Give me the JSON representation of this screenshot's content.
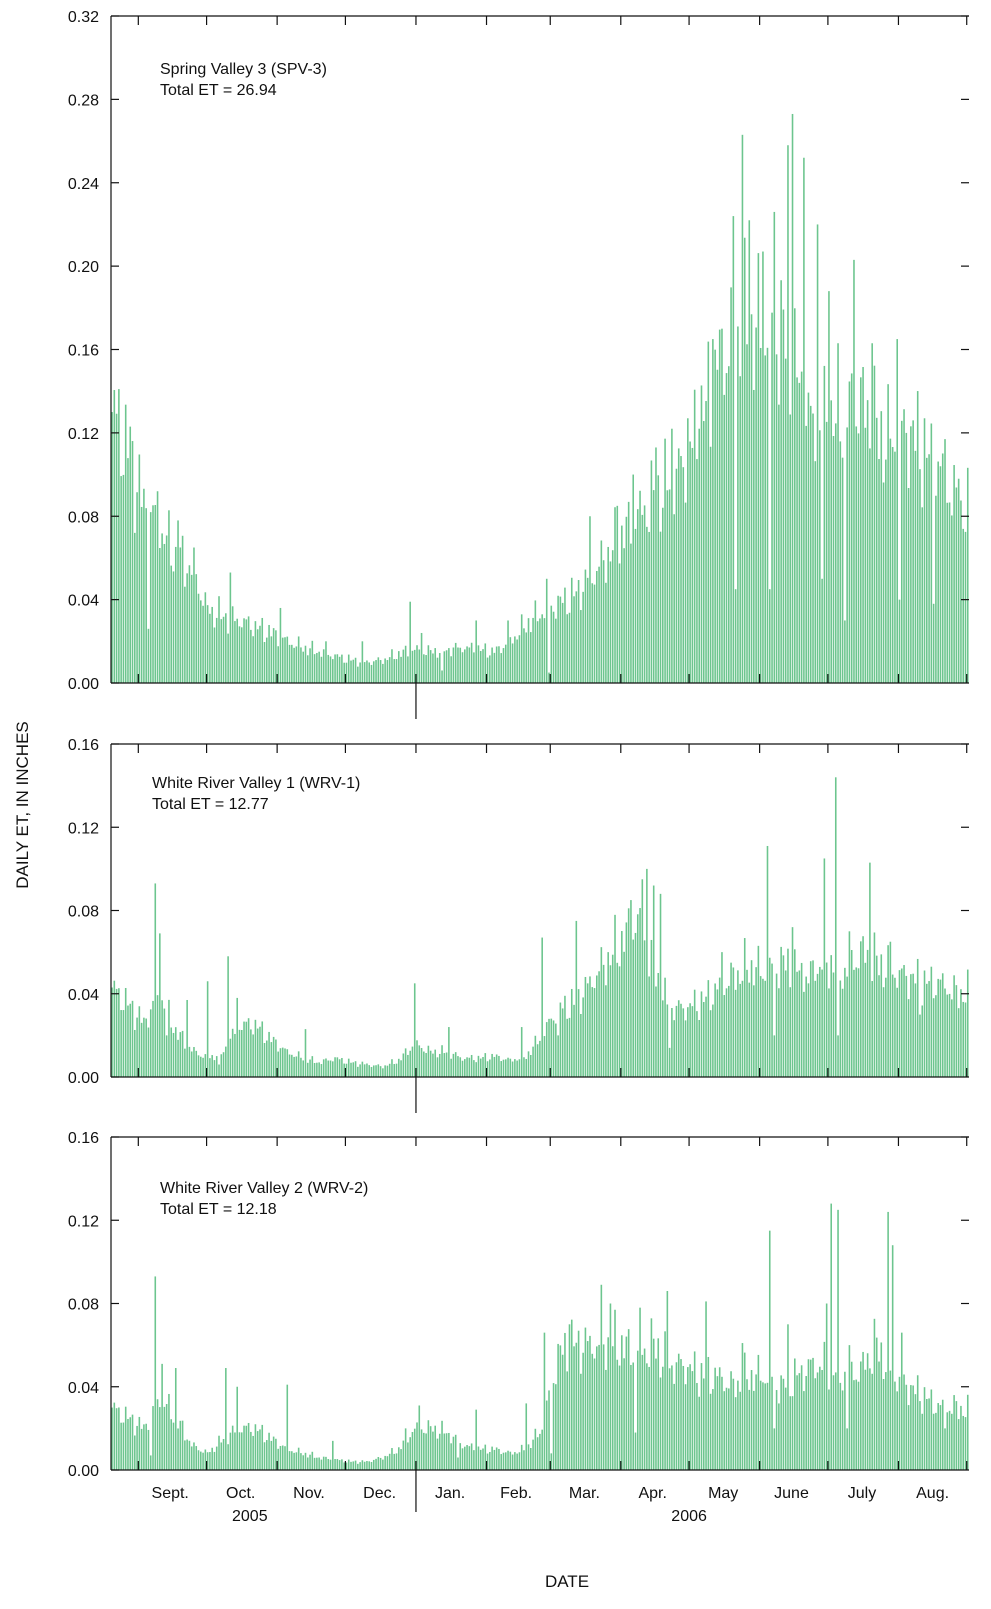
{
  "chart_data": [
    {
      "type": "bar",
      "title": "Spring Valley 3  (SPV-3)",
      "subtitle": "Total ET = 26.94",
      "ylim": [
        0,
        0.32
      ],
      "yticks": [
        "0.00",
        "0.04",
        "0.08",
        "0.12",
        "0.16",
        "0.20",
        "0.24",
        "0.28",
        "0.32"
      ],
      "color": "#6cc58e",
      "x_start": "2005-08-20",
      "x_end": "2006-08-31",
      "series": [
        {
          "x": [
            "2005-08-20",
            "2005-08-27",
            "2005-09-03",
            "2005-09-10",
            "2005-09-17",
            "2005-09-24",
            "2005-10-01",
            "2005-10-08",
            "2005-10-15",
            "2005-10-22",
            "2005-10-29",
            "2005-11-05",
            "2005-11-12",
            "2005-11-19",
            "2005-11-26",
            "2005-12-03",
            "2005-12-10",
            "2005-12-17",
            "2005-12-24",
            "2005-12-31",
            "2006-01-07",
            "2006-01-14",
            "2006-01-21",
            "2006-01-28",
            "2006-02-04",
            "2006-02-11",
            "2006-02-18",
            "2006-02-25",
            "2006-03-04",
            "2006-03-11",
            "2006-03-18",
            "2006-03-25",
            "2006-04-01",
            "2006-04-08",
            "2006-04-15",
            "2006-04-22",
            "2006-04-29",
            "2006-05-06",
            "2006-05-13",
            "2006-05-20",
            "2006-05-27",
            "2006-06-03",
            "2006-06-10",
            "2006-06-17",
            "2006-06-24",
            "2006-07-01",
            "2006-07-08",
            "2006-07-15",
            "2006-07-22",
            "2006-07-29",
            "2006-08-05",
            "2006-08-12",
            "2006-08-19",
            "2006-08-26",
            "2006-08-31"
          ],
          "values": [
            0.13,
            0.11,
            0.085,
            0.075,
            0.06,
            0.055,
            0.035,
            0.032,
            0.03,
            0.027,
            0.024,
            0.02,
            0.017,
            0.015,
            0.013,
            0.011,
            0.01,
            0.011,
            0.014,
            0.016,
            0.015,
            0.016,
            0.017,
            0.016,
            0.015,
            0.02,
            0.028,
            0.034,
            0.038,
            0.042,
            0.05,
            0.06,
            0.07,
            0.08,
            0.088,
            0.095,
            0.105,
            0.125,
            0.15,
            0.165,
            0.165,
            0.17,
            0.17,
            0.145,
            0.12,
            0.125,
            0.13,
            0.135,
            0.12,
            0.115,
            0.12,
            0.11,
            0.1,
            0.085,
            0.08
          ],
          "spikes": [
            [
              "2005-08-23",
              0.141
            ],
            [
              "2005-08-28",
              0.123
            ],
            [
              "2005-09-09",
              0.092
            ],
            [
              "2005-09-18",
              0.078
            ],
            [
              "2005-09-25",
              0.065
            ],
            [
              "2005-10-11",
              0.053
            ],
            [
              "2005-11-02",
              0.036
            ],
            [
              "2005-11-22",
              0.02
            ],
            [
              "2005-12-08",
              0.02
            ],
            [
              "2005-12-29",
              0.039
            ],
            [
              "2006-01-03",
              0.024
            ],
            [
              "2006-01-27",
              0.03
            ],
            [
              "2006-02-10",
              0.03
            ],
            [
              "2006-02-27",
              0.05
            ],
            [
              "2006-03-18",
              0.08
            ],
            [
              "2006-03-30",
              0.085
            ],
            [
              "2006-04-06",
              0.1
            ],
            [
              "2006-04-16",
              0.113
            ],
            [
              "2006-04-23",
              0.122
            ],
            [
              "2006-04-30",
              0.127
            ],
            [
              "2006-05-05",
              0.122
            ],
            [
              "2006-05-11",
              0.165
            ],
            [
              "2006-05-15",
              0.17
            ],
            [
              "2006-05-20",
              0.224
            ],
            [
              "2006-05-24",
              0.263
            ],
            [
              "2006-05-27",
              0.222
            ],
            [
              "2006-06-02",
              0.207
            ],
            [
              "2006-06-07",
              0.226
            ],
            [
              "2006-06-13",
              0.258
            ],
            [
              "2006-06-15",
              0.273
            ],
            [
              "2006-06-20",
              0.252
            ],
            [
              "2006-06-26",
              0.22
            ],
            [
              "2006-07-01",
              0.188
            ],
            [
              "2006-07-12",
              0.203
            ],
            [
              "2006-07-20",
              0.163
            ],
            [
              "2006-07-31",
              0.165
            ],
            [
              "2006-08-07",
              0.126
            ],
            [
              "2006-08-12",
              0.127
            ],
            [
              "2006-08-21",
              0.117
            ],
            [
              "2006-08-27",
              0.098
            ]
          ],
          "dips": [
            [
              "2005-09-05",
              0.026
            ],
            [
              "2006-01-12",
              0.006
            ],
            [
              "2006-02-28",
              0.005
            ],
            [
              "2006-05-21",
              0.045
            ],
            [
              "2006-06-05",
              0.045
            ],
            [
              "2006-06-28",
              0.05
            ],
            [
              "2006-07-08",
              0.03
            ],
            [
              "2006-08-01",
              0.04
            ],
            [
              "2006-08-16",
              0.038
            ]
          ]
        }
      ]
    },
    {
      "type": "bar",
      "title": "White River Valley 1  (WRV-1)",
      "subtitle": "Total ET = 12.77",
      "ylim": [
        0,
        0.16
      ],
      "yticks": [
        "0.00",
        "0.04",
        "0.08",
        "0.12",
        "0.16"
      ],
      "color": "#6cc58e",
      "x_start": "2005-08-20",
      "x_end": "2006-08-31",
      "series": [
        {
          "x": [
            "2005-08-20",
            "2005-08-27",
            "2005-09-03",
            "2005-09-10",
            "2005-09-17",
            "2005-09-24",
            "2005-10-01",
            "2005-10-08",
            "2005-10-15",
            "2005-10-22",
            "2005-10-29",
            "2005-11-05",
            "2005-11-12",
            "2005-11-19",
            "2005-11-26",
            "2005-12-03",
            "2005-12-10",
            "2005-12-17",
            "2005-12-24",
            "2005-12-31",
            "2006-01-07",
            "2006-01-14",
            "2006-01-21",
            "2006-01-28",
            "2006-02-04",
            "2006-02-11",
            "2006-02-18",
            "2006-02-25",
            "2006-03-04",
            "2006-03-11",
            "2006-03-18",
            "2006-03-25",
            "2006-04-01",
            "2006-04-08",
            "2006-04-15",
            "2006-04-22",
            "2006-04-29",
            "2006-05-06",
            "2006-05-13",
            "2006-05-20",
            "2006-05-27",
            "2006-06-03",
            "2006-06-10",
            "2006-06-17",
            "2006-06-24",
            "2006-07-01",
            "2006-07-08",
            "2006-07-15",
            "2006-07-22",
            "2006-07-29",
            "2006-08-05",
            "2006-08-12",
            "2006-08-19",
            "2006-08-26",
            "2006-08-31"
          ],
          "values": [
            0.043,
            0.035,
            0.026,
            0.04,
            0.022,
            0.013,
            0.009,
            0.012,
            0.025,
            0.025,
            0.018,
            0.012,
            0.009,
            0.007,
            0.009,
            0.007,
            0.006,
            0.005,
            0.008,
            0.016,
            0.012,
            0.012,
            0.009,
            0.009,
            0.01,
            0.008,
            0.01,
            0.02,
            0.033,
            0.035,
            0.045,
            0.055,
            0.065,
            0.075,
            0.05,
            0.033,
            0.033,
            0.036,
            0.042,
            0.048,
            0.053,
            0.05,
            0.055,
            0.05,
            0.052,
            0.055,
            0.05,
            0.06,
            0.055,
            0.05,
            0.048,
            0.045,
            0.045,
            0.04,
            0.04
          ],
          "spikes": [
            [
              "2005-09-08",
              0.093
            ],
            [
              "2005-09-10",
              0.069
            ],
            [
              "2005-09-22",
              0.037
            ],
            [
              "2005-10-01",
              0.046
            ],
            [
              "2005-10-10",
              0.058
            ],
            [
              "2005-10-14",
              0.038
            ],
            [
              "2005-11-13",
              0.023
            ],
            [
              "2005-12-31",
              0.045
            ],
            [
              "2006-01-15",
              0.024
            ],
            [
              "2006-02-16",
              0.024
            ],
            [
              "2006-02-25",
              0.067
            ],
            [
              "2006-03-04",
              0.04
            ],
            [
              "2006-03-12",
              0.075
            ],
            [
              "2006-03-26",
              0.06
            ],
            [
              "2006-04-05",
              0.085
            ],
            [
              "2006-04-10",
              0.095
            ],
            [
              "2006-04-12",
              0.1
            ],
            [
              "2006-04-15",
              0.092
            ],
            [
              "2006-04-18",
              0.088
            ],
            [
              "2006-05-15",
              0.06
            ],
            [
              "2006-06-04",
              0.111
            ],
            [
              "2006-06-15",
              0.072
            ],
            [
              "2006-06-29",
              0.105
            ],
            [
              "2006-07-04",
              0.144
            ],
            [
              "2006-07-10",
              0.07
            ],
            [
              "2006-07-19",
              0.103
            ],
            [
              "2006-07-28",
              0.065
            ]
          ],
          "dips": [
            [
              "2005-09-13",
              0.02
            ],
            [
              "2005-10-06",
              0.006
            ],
            [
              "2006-03-04",
              0.02
            ],
            [
              "2006-04-22",
              0.014
            ],
            [
              "2006-06-07",
              0.02
            ],
            [
              "2006-06-22",
              0.045
            ],
            [
              "2006-07-05",
              0.02
            ],
            [
              "2006-08-10",
              0.03
            ]
          ]
        }
      ]
    },
    {
      "type": "bar",
      "title": "White River Valley 2  (WRV-2)",
      "subtitle": "Total ET = 12.18",
      "ylim": [
        0,
        0.16
      ],
      "yticks": [
        "0.00",
        "0.04",
        "0.08",
        "0.12",
        "0.16"
      ],
      "color": "#6cc58e",
      "x_start": "2005-08-20",
      "x_end": "2006-08-31",
      "xlabel": "DATE",
      "ylabel": "DAILY ET, IN INCHES",
      "months": [
        {
          "label": "Sept.",
          "mid": "2005-09-15"
        },
        {
          "label": "Oct.",
          "mid": "2005-10-16"
        },
        {
          "label": "Nov.",
          "mid": "2005-11-15"
        },
        {
          "label": "Dec.",
          "mid": "2005-12-16"
        },
        {
          "label": "Jan.",
          "mid": "2006-01-16"
        },
        {
          "label": "Feb.",
          "mid": "2006-02-14"
        },
        {
          "label": "Mar.",
          "mid": "2006-03-16"
        },
        {
          "label": "Apr.",
          "mid": "2006-04-15"
        },
        {
          "label": "May",
          "mid": "2006-05-16"
        },
        {
          "label": "June",
          "mid": "2006-06-15"
        },
        {
          "label": "July",
          "mid": "2006-07-16"
        },
        {
          "label": "Aug.",
          "mid": "2006-08-16"
        }
      ],
      "month_ticks": [
        "2005-09-01",
        "2005-10-01",
        "2005-11-01",
        "2005-12-01",
        "2006-01-01",
        "2006-02-01",
        "2006-03-01",
        "2006-04-01",
        "2006-05-01",
        "2006-06-01",
        "2006-07-01",
        "2006-08-01",
        "2006-08-31"
      ],
      "years": [
        {
          "label": "2005",
          "mid": "2005-10-20"
        },
        {
          "label": "2006",
          "mid": "2006-05-01"
        }
      ],
      "series": [
        {
          "x": [
            "2005-08-20",
            "2005-08-27",
            "2005-09-03",
            "2005-09-10",
            "2005-09-17",
            "2005-09-24",
            "2005-10-01",
            "2005-10-08",
            "2005-10-15",
            "2005-10-22",
            "2005-10-29",
            "2005-11-05",
            "2005-11-12",
            "2005-11-19",
            "2005-11-26",
            "2005-12-03",
            "2005-12-10",
            "2005-12-17",
            "2005-12-24",
            "2005-12-31",
            "2006-01-07",
            "2006-01-14",
            "2006-01-21",
            "2006-01-28",
            "2006-02-04",
            "2006-02-11",
            "2006-02-18",
            "2006-02-25",
            "2006-03-04",
            "2006-03-11",
            "2006-03-18",
            "2006-03-25",
            "2006-04-01",
            "2006-04-08",
            "2006-04-15",
            "2006-04-22",
            "2006-04-29",
            "2006-05-06",
            "2006-05-13",
            "2006-05-20",
            "2006-05-27",
            "2006-06-03",
            "2006-06-10",
            "2006-06-17",
            "2006-06-24",
            "2006-07-01",
            "2006-07-08",
            "2006-07-15",
            "2006-07-22",
            "2006-07-29",
            "2006-08-05",
            "2006-08-12",
            "2006-08-19",
            "2006-08-26",
            "2006-08-31"
          ],
          "values": [
            0.03,
            0.025,
            0.02,
            0.035,
            0.025,
            0.012,
            0.008,
            0.015,
            0.02,
            0.02,
            0.015,
            0.01,
            0.008,
            0.006,
            0.005,
            0.004,
            0.004,
            0.006,
            0.01,
            0.02,
            0.02,
            0.018,
            0.012,
            0.01,
            0.01,
            0.008,
            0.01,
            0.02,
            0.055,
            0.06,
            0.06,
            0.06,
            0.06,
            0.055,
            0.06,
            0.05,
            0.05,
            0.045,
            0.045,
            0.04,
            0.045,
            0.045,
            0.04,
            0.045,
            0.05,
            0.05,
            0.045,
            0.048,
            0.06,
            0.045,
            0.04,
            0.035,
            0.03,
            0.03,
            0.028
          ],
          "spikes": [
            [
              "2005-09-08",
              0.093
            ],
            [
              "2005-09-11",
              0.051
            ],
            [
              "2005-09-17",
              0.049
            ],
            [
              "2005-10-09",
              0.049
            ],
            [
              "2005-10-14",
              0.04
            ],
            [
              "2005-11-05",
              0.041
            ],
            [
              "2005-11-25",
              0.014
            ],
            [
              "2005-12-27",
              0.02
            ],
            [
              "2006-01-02",
              0.031
            ],
            [
              "2006-01-27",
              0.029
            ],
            [
              "2006-02-18",
              0.032
            ],
            [
              "2006-02-26",
              0.066
            ],
            [
              "2006-03-09",
              0.07
            ],
            [
              "2006-03-23",
              0.089
            ],
            [
              "2006-03-27",
              0.08
            ],
            [
              "2006-04-09",
              0.078
            ],
            [
              "2006-04-21",
              0.086
            ],
            [
              "2006-05-08",
              0.081
            ],
            [
              "2006-05-24",
              0.061
            ],
            [
              "2006-06-05",
              0.115
            ],
            [
              "2006-06-13",
              0.07
            ],
            [
              "2006-06-30",
              0.08
            ],
            [
              "2006-07-02",
              0.128
            ],
            [
              "2006-07-05",
              0.125
            ],
            [
              "2006-07-10",
              0.06
            ],
            [
              "2006-07-27",
              0.124
            ],
            [
              "2006-07-29",
              0.108
            ],
            [
              "2006-08-02",
              0.066
            ]
          ],
          "dips": [
            [
              "2005-09-06",
              0.007
            ],
            [
              "2006-01-19",
              0.006
            ],
            [
              "2006-03-01",
              0.008
            ],
            [
              "2006-04-07",
              0.018
            ],
            [
              "2006-06-07",
              0.02
            ],
            [
              "2006-07-09",
              0.02
            ],
            [
              "2006-08-21",
              0.02
            ]
          ]
        }
      ]
    }
  ]
}
